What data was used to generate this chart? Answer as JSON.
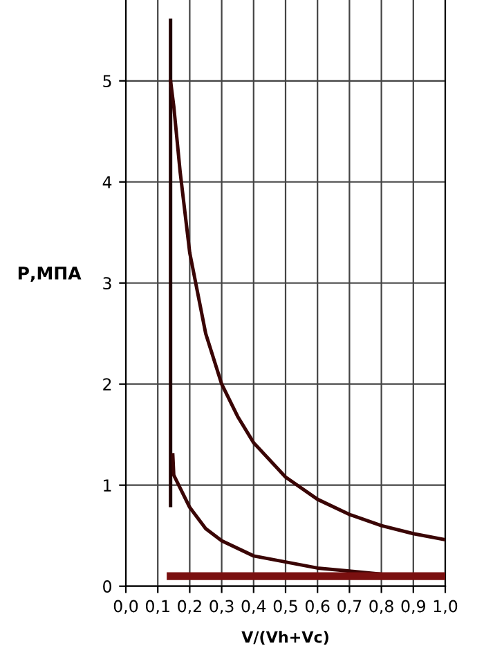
{
  "chart_data": {
    "type": "line",
    "xlabel": "V/(Vh+Vc)",
    "ylabel": "Р,МПА",
    "xlim": [
      0,
      1
    ],
    "ylim": [
      0,
      5.8
    ],
    "xticks": [
      {
        "value": 0,
        "label": "0,0"
      },
      {
        "value": 0.1,
        "label": "0,1"
      },
      {
        "value": 0.2,
        "label": "0,2"
      },
      {
        "value": 0.3,
        "label": "0,3"
      },
      {
        "value": 0.4,
        "label": "0,4"
      },
      {
        "value": 0.5,
        "label": "0,5"
      },
      {
        "value": 0.6,
        "label": "0,6"
      },
      {
        "value": 0.7,
        "label": "0,7"
      },
      {
        "value": 0.8,
        "label": "0,8"
      },
      {
        "value": 0.9,
        "label": "0,9"
      },
      {
        "value": 1,
        "label": "1,0"
      }
    ],
    "yticks": [
      0,
      1,
      2,
      3,
      4,
      5
    ],
    "grid": true,
    "marker": "none",
    "line_style": "solid",
    "series": [
      {
        "color": "#200000",
        "x": [
          0.14,
          0.14
        ],
        "values": [
          0.8,
          5.6
        ]
      },
      {
        "color": "#3a0505",
        "x": [
          0.14,
          0.15,
          0.17,
          0.2,
          0.25,
          0.3,
          0.35,
          0.4,
          0.5,
          0.6,
          0.7,
          0.8,
          0.9,
          1.0
        ],
        "values": [
          5.0,
          4.75,
          4.1,
          3.3,
          2.5,
          2.0,
          1.68,
          1.42,
          1.08,
          0.86,
          0.71,
          0.6,
          0.52,
          0.46
        ]
      },
      {
        "color": "#3a0505",
        "x": [
          0.147,
          0.15,
          0.2,
          0.25,
          0.3,
          0.4,
          0.5,
          0.6,
          0.7,
          0.8,
          0.9,
          1.0
        ],
        "values": [
          1.3,
          1.1,
          0.78,
          0.57,
          0.45,
          0.3,
          0.24,
          0.18,
          0.15,
          0.12,
          0.11,
          0.1
        ]
      },
      {
        "color": "#7a1010",
        "x": [
          0.14,
          1.0
        ],
        "values": [
          0.1,
          0.1
        ]
      }
    ]
  }
}
